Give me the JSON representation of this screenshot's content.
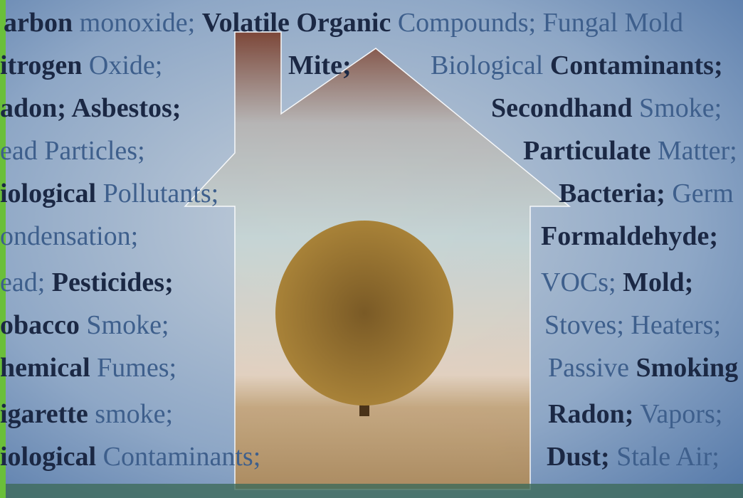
{
  "lines": [
    {
      "segments": [
        {
          "text": "arbon",
          "bold": true
        },
        {
          "text": " monoxide; ",
          "bold": false
        },
        {
          "text": "Volatile Organic",
          "bold": true
        },
        {
          "text": " Compounds; Fungal Mold",
          "bold": false
        }
      ]
    },
    {
      "segments": [
        {
          "text": "itrogen",
          "bold": true
        },
        {
          "text": " Oxide;",
          "bold": false
        }
      ]
    },
    {
      "segments": [
        {
          "text": "Mite;",
          "bold": true
        }
      ]
    },
    {
      "segments": [
        {
          "text": "Biological ",
          "bold": false
        },
        {
          "text": "Contaminants;",
          "bold": true
        }
      ]
    },
    {
      "segments": [
        {
          "text": "adon; Asbestos;",
          "bold": true
        }
      ]
    },
    {
      "segments": [
        {
          "text": "Secondhand",
          "bold": true
        },
        {
          "text": " Smoke;",
          "bold": false
        }
      ]
    },
    {
      "segments": [
        {
          "text": "ead Particles;",
          "bold": false
        }
      ]
    },
    {
      "segments": [
        {
          "text": "Particulate",
          "bold": true
        },
        {
          "text": " Matter;",
          "bold": false
        }
      ]
    },
    {
      "segments": [
        {
          "text": "iological",
          "bold": true
        },
        {
          "text": " Pollutants;",
          "bold": false
        }
      ]
    },
    {
      "segments": [
        {
          "text": "Bacteria;",
          "bold": true
        },
        {
          "text": " Germ",
          "bold": false
        }
      ]
    },
    {
      "segments": [
        {
          "text": "ondensation;",
          "bold": false
        }
      ]
    },
    {
      "segments": [
        {
          "text": "Formaldehyde;",
          "bold": true
        }
      ]
    },
    {
      "segments": [
        {
          "text": "ead; ",
          "bold": false
        },
        {
          "text": "Pesticides;",
          "bold": true
        }
      ]
    },
    {
      "segments": [
        {
          "text": "VOCs; ",
          "bold": false
        },
        {
          "text": "Mold;",
          "bold": true
        }
      ]
    },
    {
      "segments": [
        {
          "text": "obacco",
          "bold": true
        },
        {
          "text": " Smoke;",
          "bold": false
        }
      ]
    },
    {
      "segments": [
        {
          "text": "Stoves; Heaters;",
          "bold": false
        }
      ]
    },
    {
      "segments": [
        {
          "text": "hemical",
          "bold": true
        },
        {
          "text": " Fumes;",
          "bold": false
        }
      ]
    },
    {
      "segments": [
        {
          "text": "Passive ",
          "bold": false
        },
        {
          "text": "Smoking",
          "bold": true
        }
      ]
    },
    {
      "segments": [
        {
          "text": "igarette",
          "bold": true
        },
        {
          "text": " smoke;",
          "bold": false
        }
      ]
    },
    {
      "segments": [
        {
          "text": "Radon;",
          "bold": true
        },
        {
          "text": " Vapors;",
          "bold": false
        }
      ]
    },
    {
      "segments": [
        {
          "text": "iological",
          "bold": true
        },
        {
          "text": " Contaminants;",
          "bold": false
        }
      ]
    },
    {
      "segments": [
        {
          "text": "Dust;",
          "bold": true
        },
        {
          "text": " Stale Air;",
          "bold": false
        }
      ]
    }
  ]
}
